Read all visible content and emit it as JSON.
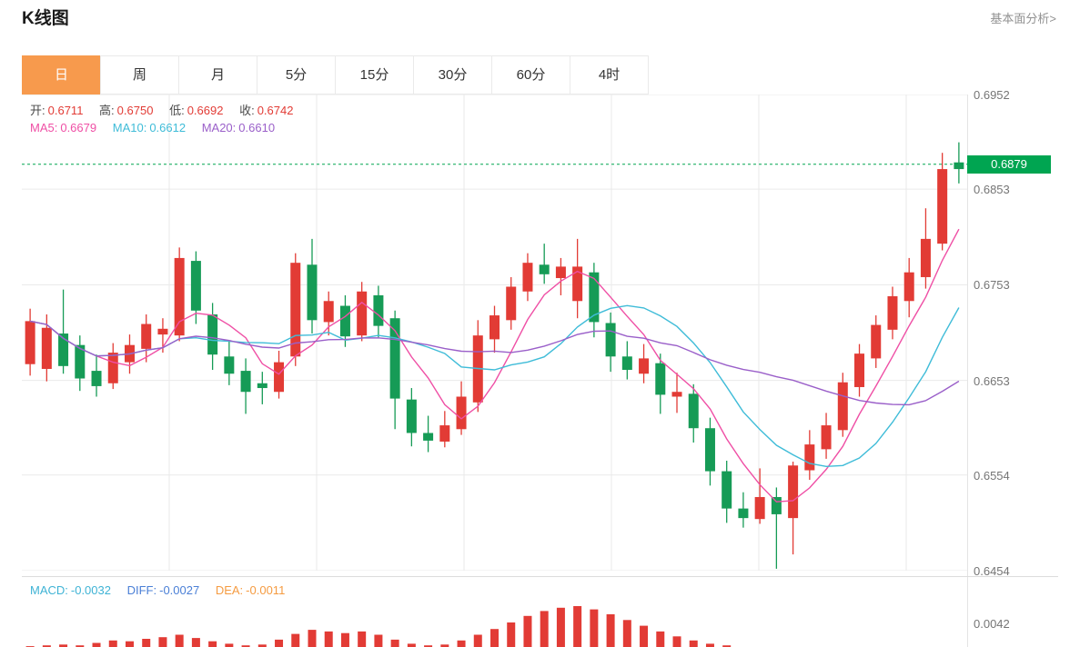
{
  "page": {
    "title": "K线图",
    "link": "基本面分析>"
  },
  "tabs": [
    {
      "label": "日",
      "active": true
    },
    {
      "label": "周"
    },
    {
      "label": "月"
    },
    {
      "label": "5分"
    },
    {
      "label": "15分"
    },
    {
      "label": "30分"
    },
    {
      "label": "60分"
    },
    {
      "label": "4时"
    }
  ],
  "legend": {
    "open": {
      "label": "开:",
      "value": "0.6711"
    },
    "high": {
      "label": "高:",
      "value": "0.6750"
    },
    "low": {
      "label": "低:",
      "value": "0.6692"
    },
    "close": {
      "label": "收:",
      "value": "0.6742"
    },
    "ma5": {
      "label": "MA5:",
      "value": "0.6679"
    },
    "ma10": {
      "label": "MA10:",
      "value": "0.6612"
    },
    "ma20": {
      "label": "MA20:",
      "value": "0.6610"
    }
  },
  "price_axis": [
    "0.6952",
    "0.6853",
    "0.6753",
    "0.6653",
    "0.6554",
    "0.6454"
  ],
  "current_price_label": "0.6879",
  "macd_legend": {
    "macd": {
      "label": "MACD:",
      "value": "-0.0032"
    },
    "diff": {
      "label": "DIFF:",
      "value": "-0.0027"
    },
    "dea": {
      "label": "DEA:",
      "value": "-0.0011"
    },
    "axis_value": "0.0042"
  },
  "colors": {
    "up": "#e23b35",
    "down": "#169b56",
    "current_price": "#00a551",
    "ma5": "#ef4fa5",
    "ma10": "#3fbcd8",
    "ma20": "#9a5fc9",
    "tab_active": "#f79a4d"
  },
  "chart_data": {
    "type": "candlestick",
    "title": "K线图",
    "ylim": [
      0.6454,
      0.6952
    ],
    "current_price": 0.6879,
    "legend_ohlc": {
      "open": 0.6711,
      "high": 0.675,
      "low": 0.6692,
      "close": 0.6742
    },
    "candles": [
      [
        0.667,
        0.6728,
        0.6658,
        0.6715
      ],
      [
        0.6665,
        0.6722,
        0.6652,
        0.6708
      ],
      [
        0.6702,
        0.6748,
        0.666,
        0.6668
      ],
      [
        0.669,
        0.67,
        0.6642,
        0.6655
      ],
      [
        0.6663,
        0.668,
        0.6636,
        0.6647
      ],
      [
        0.665,
        0.6692,
        0.6644,
        0.6682
      ],
      [
        0.6672,
        0.6701,
        0.666,
        0.669
      ],
      [
        0.6686,
        0.6722,
        0.6672,
        0.6712
      ],
      [
        0.6701,
        0.6718,
        0.6682,
        0.6707
      ],
      [
        0.67,
        0.6792,
        0.6694,
        0.6781
      ],
      [
        0.6778,
        0.6788,
        0.6712,
        0.6726
      ],
      [
        0.6722,
        0.6734,
        0.6664,
        0.668
      ],
      [
        0.6678,
        0.6694,
        0.6648,
        0.666
      ],
      [
        0.6663,
        0.6676,
        0.6618,
        0.6641
      ],
      [
        0.665,
        0.6662,
        0.6628,
        0.6645
      ],
      [
        0.6641,
        0.6684,
        0.6634,
        0.6672
      ],
      [
        0.6678,
        0.6786,
        0.6668,
        0.6776
      ],
      [
        0.6774,
        0.6801,
        0.6702,
        0.6716
      ],
      [
        0.6714,
        0.6746,
        0.67,
        0.6736
      ],
      [
        0.6731,
        0.6742,
        0.6688,
        0.6699
      ],
      [
        0.67,
        0.6756,
        0.6694,
        0.6746
      ],
      [
        0.6742,
        0.6752,
        0.6698,
        0.671
      ],
      [
        0.6718,
        0.6726,
        0.6602,
        0.6634
      ],
      [
        0.6633,
        0.6645,
        0.6584,
        0.6598
      ],
      [
        0.6598,
        0.6616,
        0.6578,
        0.659
      ],
      [
        0.6589,
        0.6621,
        0.6583,
        0.6606
      ],
      [
        0.6602,
        0.6652,
        0.6596,
        0.6636
      ],
      [
        0.663,
        0.6716,
        0.662,
        0.67
      ],
      [
        0.6696,
        0.6731,
        0.6682,
        0.6721
      ],
      [
        0.6716,
        0.6761,
        0.6706,
        0.6751
      ],
      [
        0.6746,
        0.6786,
        0.6736,
        0.6776
      ],
      [
        0.6774,
        0.6796,
        0.6754,
        0.6764
      ],
      [
        0.676,
        0.6781,
        0.6742,
        0.6772
      ],
      [
        0.6736,
        0.6801,
        0.6718,
        0.6772
      ],
      [
        0.6766,
        0.6776,
        0.6698,
        0.6714
      ],
      [
        0.6713,
        0.6724,
        0.6662,
        0.6678
      ],
      [
        0.6678,
        0.6694,
        0.6654,
        0.6664
      ],
      [
        0.666,
        0.6691,
        0.665,
        0.6676
      ],
      [
        0.6671,
        0.6681,
        0.6618,
        0.6638
      ],
      [
        0.6636,
        0.6661,
        0.6619,
        0.6641
      ],
      [
        0.6639,
        0.6649,
        0.6588,
        0.6603
      ],
      [
        0.6603,
        0.6614,
        0.6543,
        0.6558
      ],
      [
        0.6558,
        0.6569,
        0.6504,
        0.6519
      ],
      [
        0.6519,
        0.6536,
        0.6499,
        0.6509
      ],
      [
        0.6508,
        0.6561,
        0.6503,
        0.6531
      ],
      [
        0.6531,
        0.6541,
        0.6456,
        0.6513
      ],
      [
        0.6509,
        0.6568,
        0.6471,
        0.6564
      ],
      [
        0.6559,
        0.6601,
        0.6549,
        0.6586
      ],
      [
        0.6581,
        0.6619,
        0.6571,
        0.6606
      ],
      [
        0.6601,
        0.6661,
        0.6594,
        0.6651
      ],
      [
        0.6646,
        0.6691,
        0.6636,
        0.6681
      ],
      [
        0.6676,
        0.6721,
        0.6666,
        0.6711
      ],
      [
        0.6706,
        0.6751,
        0.6696,
        0.6741
      ],
      [
        0.6736,
        0.6781,
        0.6719,
        0.6766
      ],
      [
        0.6761,
        0.6833,
        0.6749,
        0.6801
      ],
      [
        0.6796,
        0.6891,
        0.6789,
        0.6874
      ],
      [
        0.6881,
        0.6902,
        0.6859,
        0.6874
      ]
    ],
    "overlays": [
      {
        "name": "MA5",
        "window": 5,
        "color": "#ef4fa5"
      },
      {
        "name": "MA10",
        "window": 10,
        "color": "#3fbcd8"
      },
      {
        "name": "MA20",
        "window": 20,
        "color": "#9a5fc9"
      }
    ],
    "macd": {
      "macd": -0.0032,
      "diff": -0.0027,
      "dea": -0.0011,
      "axis_label": 0.0042
    },
    "macd_hist": [
      0.0001,
      0.0002,
      0.0003,
      0.0002,
      0.0005,
      0.0008,
      0.0007,
      0.001,
      0.0012,
      0.0015,
      0.0011,
      0.0007,
      0.0004,
      0.0002,
      0.0003,
      0.0009,
      0.0016,
      0.0021,
      0.0019,
      0.0017,
      0.0019,
      0.0015,
      0.0009,
      0.0004,
      0.0002,
      0.0003,
      0.0008,
      0.0015,
      0.0022,
      0.003,
      0.0038,
      0.0044,
      0.0048,
      0.005,
      0.0046,
      0.004,
      0.0033,
      0.0026,
      0.0019,
      0.0013,
      0.0008,
      0.0004,
      0.0002,
      0,
      0,
      0,
      0,
      0,
      0,
      0,
      0,
      0,
      0,
      0,
      0,
      0,
      0
    ]
  }
}
